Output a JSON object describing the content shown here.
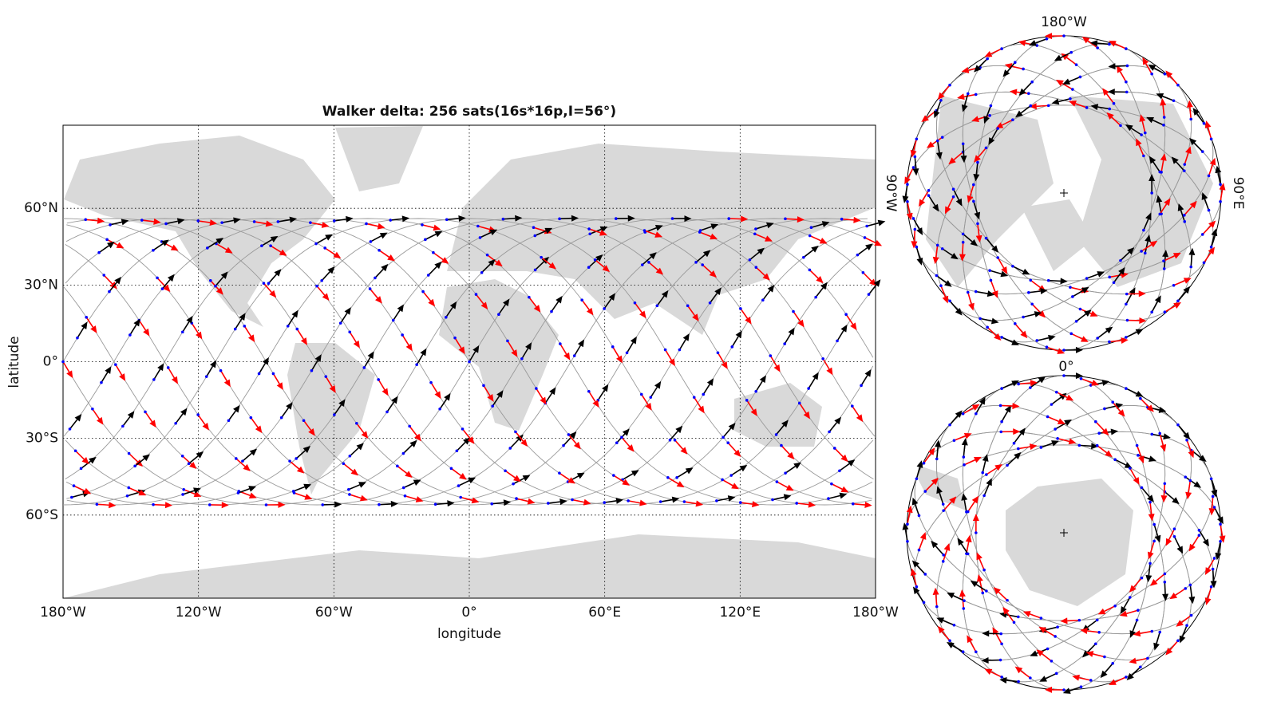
{
  "chart_data": [
    {
      "type": "map",
      "title": "Walker delta: 256 sats(16s*16p,I=56°)",
      "xlabel": "longitude",
      "ylabel": "latitude",
      "xlim": [
        -180,
        180
      ],
      "ylim": [
        -92.5,
        92.5
      ],
      "xticks": [
        {
          "value": -180,
          "label": "180°W"
        },
        {
          "value": -120,
          "label": "120°W"
        },
        {
          "value": -60,
          "label": "60°W"
        },
        {
          "value": 0,
          "label": "0°"
        },
        {
          "value": 60,
          "label": "60°E"
        },
        {
          "value": 120,
          "label": "120°E"
        },
        {
          "value": 180,
          "label": "180°W"
        }
      ],
      "yticks": [
        {
          "value": -60,
          "label": "60°S"
        },
        {
          "value": -30,
          "label": "30°S"
        },
        {
          "value": 0,
          "label": "0°"
        },
        {
          "value": 30,
          "label": "30°N"
        },
        {
          "value": 60,
          "label": "60°N"
        }
      ],
      "grid": true,
      "constellation": {
        "planes": 16,
        "sats_per_plane": 16,
        "inclination": 56
      },
      "colors": {
        "track": "#999999",
        "ascending": "#000000",
        "descending": "#ff0000",
        "satellite": "#0000ff"
      }
    },
    {
      "type": "polar",
      "hemisphere": "north",
      "labels": {
        "top": "180°W",
        "bottom": "0°",
        "left": "90°W",
        "right": "90°E"
      }
    },
    {
      "type": "polar",
      "hemisphere": "south"
    }
  ]
}
